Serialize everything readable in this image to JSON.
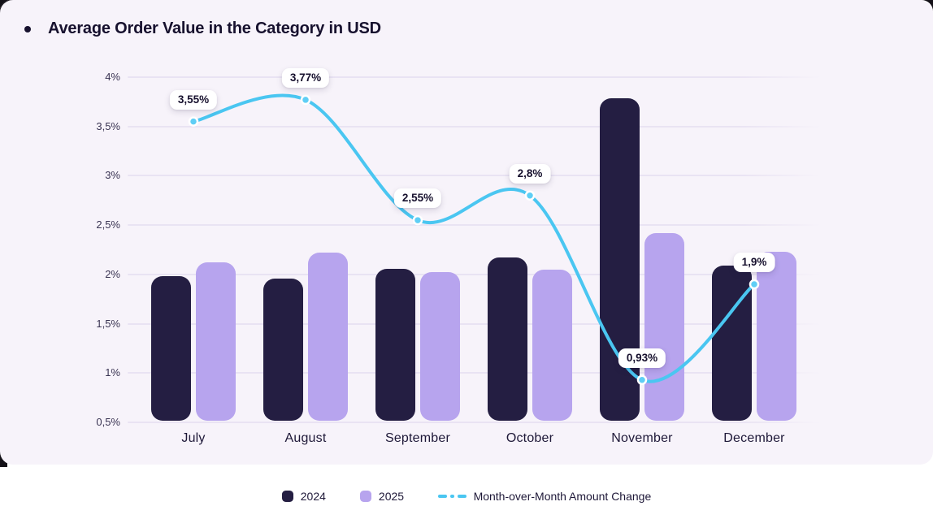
{
  "title": "Average Order Value in the Category in USD",
  "legend": {
    "items": [
      {
        "label": "2024",
        "type": "swatch",
        "color": "#241E42"
      },
      {
        "label": "2025",
        "type": "swatch",
        "color": "#B7A4EE"
      },
      {
        "label": "Month-over-Month Amount Change",
        "type": "dashed-line",
        "color": "#4AC6F1"
      }
    ]
  },
  "chart_data": {
    "type": "bar+line",
    "title": "Average Order Value in the Category in USD",
    "categories": [
      "July",
      "August",
      "September",
      "October",
      "November",
      "December"
    ],
    "series": [
      {
        "name": "2024",
        "color": "#241E42",
        "values": [
          1.98,
          1.96,
          2.06,
          2.17,
          3.79,
          2.09
        ]
      },
      {
        "name": "2025",
        "color": "#B7A4EE",
        "values": [
          2.12,
          2.22,
          2.02,
          2.05,
          2.42,
          2.23
        ]
      }
    ],
    "line_series": {
      "name": "Month-over-Month Amount Change",
      "color": "#4AC6F1",
      "dot_fill": "#5FCEF5",
      "values": [
        3.55,
        3.77,
        2.55,
        2.8,
        0.93,
        1.9
      ],
      "labels": [
        "3,55%",
        "3,77%",
        "2,55%",
        "2,8%",
        "0,93%",
        "1,9%"
      ]
    },
    "y_axis": {
      "tick_values": [
        4,
        3.5,
        3,
        2.5,
        2,
        1.5,
        1,
        0.5
      ],
      "tick_labels": [
        "4%",
        "3,5%",
        "3%",
        "2,5%",
        "2%",
        "1,5%",
        "1%",
        "0,5%"
      ],
      "ylim": [
        0.5,
        4
      ],
      "unit": "%"
    },
    "grid": true,
    "legend_position": "bottom"
  },
  "colors": {
    "card_bg": "#F7F3FA",
    "page_bg": "#FFFFFF",
    "outer_bg": "#141118",
    "gridline": "#E9E3F3",
    "title_text": "#17112E",
    "axis_text": "#3A3453",
    "month_text": "#1E1838",
    "pill_bg": "#FFFFFF",
    "pill_text": "#17112E"
  }
}
